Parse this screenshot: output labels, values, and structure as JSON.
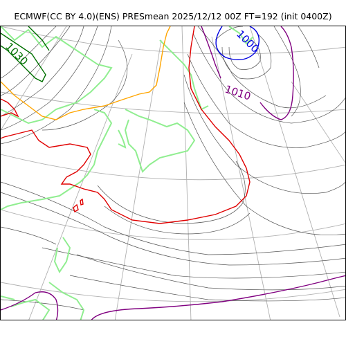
{
  "title": "ECMWF(CC BY 4.0)(ENS) PRESmean 2025/12/12 00Z FT=192 (init 0400Z)",
  "contour_labels": {
    "l1030": "1030",
    "l1000": "1000",
    "l1010": "1010"
  },
  "colors": {
    "graticule": "#b0b0b0",
    "isobar_thin": "#555555",
    "isobar_1000": "#0000e0",
    "isobar_1010": "#800080",
    "isobar_1020": "#e00000",
    "isobar_1030": "#007000",
    "coast": "#90ee90",
    "orange_contour": "#ffa500"
  }
}
